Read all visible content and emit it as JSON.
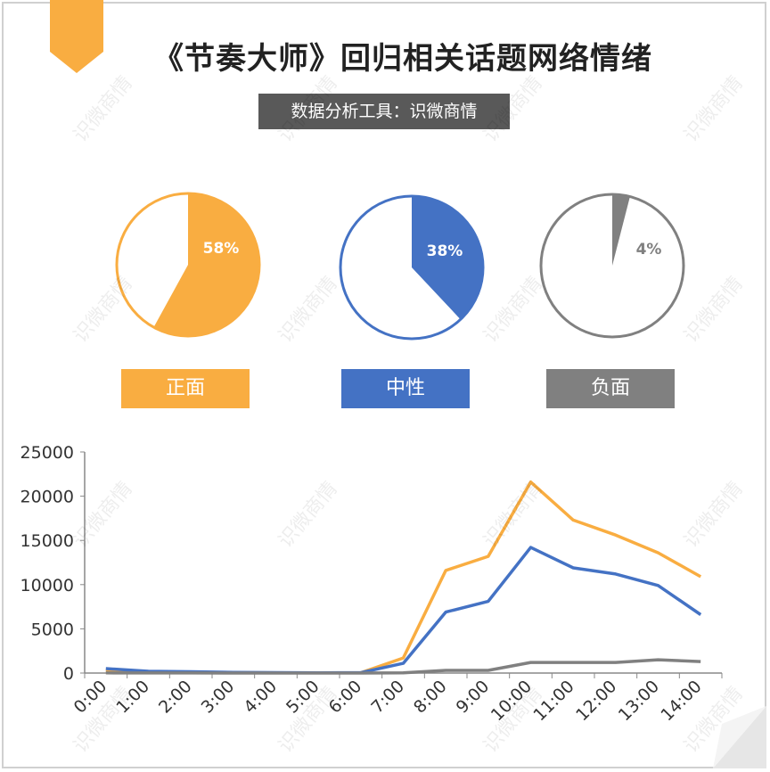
{
  "title": "《节奏大师》回归相关话题网络情绪",
  "subtitle": "数据分析工具：识微商情",
  "watermark": "识微商情",
  "colors": {
    "positive": "#F9AD41",
    "neutral": "#4472C4",
    "negative": "#808080",
    "accent": "#F9AD41"
  },
  "sentiment": [
    {
      "label": "正面",
      "percent_label": "58%",
      "value": 58,
      "color": "#F9AD41"
    },
    {
      "label": "中性",
      "percent_label": "38%",
      "value": 38,
      "color": "#4472C4"
    },
    {
      "label": "负面",
      "percent_label": "4%",
      "value": 4,
      "color": "#808080"
    }
  ],
  "chart_data": {
    "type": "line",
    "x": [
      "0:00",
      "1:00",
      "2:00",
      "3:00",
      "4:00",
      "5:00",
      "6:00",
      "7:00",
      "8:00",
      "9:00",
      "10:00",
      "11:00",
      "12:00",
      "13:00",
      "14:00"
    ],
    "ylim": [
      0,
      25000
    ],
    "yticks": [
      "25000",
      "20000",
      "15000",
      "10000",
      "5000",
      "0"
    ],
    "series": [
      {
        "key": "positive",
        "color": "#F9AD41",
        "values": [
          300,
          150,
          100,
          50,
          30,
          20,
          30,
          1700,
          11600,
          13200,
          21600,
          17300,
          15600,
          13600,
          10900
        ]
      },
      {
        "key": "neutral",
        "color": "#4472C4",
        "values": [
          500,
          200,
          150,
          80,
          50,
          30,
          40,
          1100,
          6900,
          8100,
          14200,
          11900,
          11200,
          9900,
          6600
        ]
      },
      {
        "key": "negative",
        "color": "#808080",
        "values": [
          20,
          10,
          10,
          5,
          5,
          5,
          5,
          30,
          300,
          300,
          1200,
          1200,
          1200,
          1500,
          1300
        ]
      }
    ]
  }
}
